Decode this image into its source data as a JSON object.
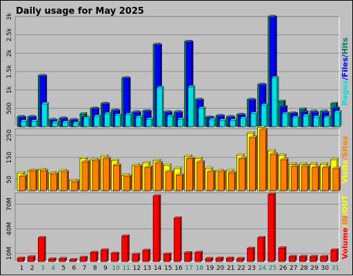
{
  "chart_data": {
    "type": "bar",
    "title": "Daily usage for May 2025",
    "days": [
      "1",
      "2",
      "3",
      "4",
      "5",
      "6",
      "7",
      "8",
      "9",
      "10",
      "11",
      "12",
      "13",
      "14",
      "15",
      "16",
      "17",
      "18",
      "19",
      "20",
      "21",
      "22",
      "23",
      "24",
      "25",
      "26",
      "27",
      "28",
      "29",
      "30",
      "31"
    ],
    "weekend_days": [
      "3",
      "4",
      "10",
      "11",
      "17",
      "18",
      "24",
      "25",
      "31"
    ],
    "colors": {
      "title": "#0000ff",
      "hits": "#00805c",
      "files": "#0000ff",
      "pages": "#00e0e0",
      "visits": "#ffff00",
      "sites": "#ff8000",
      "kbytes": "#ff0000",
      "in": "#ff8000",
      "out": "#ffff00",
      "weekend_label": "#00805c",
      "weekday_label": "#000000"
    },
    "panels": [
      {
        "name": "hits-files-pages",
        "ylim": [
          0,
          3000
        ],
        "y_ticks": [
          {
            "label": "3k",
            "value": 3000
          },
          {
            "label": "2.5k",
            "value": 2500
          },
          {
            "label": "2k",
            "value": 2000
          },
          {
            "label": "1.5k",
            "value": 1500
          },
          {
            "label": "1k",
            "value": 1000
          },
          {
            "label": "500",
            "value": 500
          }
        ],
        "series": [
          {
            "name": "Hits",
            "color_key": "hits",
            "values": [
              270,
              270,
              1390,
              190,
              230,
              190,
              350,
              500,
              630,
              450,
              1330,
              400,
              430,
              2240,
              400,
              400,
              2320,
              740,
              260,
              300,
              270,
              330,
              740,
              1150,
              3000,
              690,
              370,
              480,
              420,
              420,
              630
            ]
          },
          {
            "name": "Files",
            "color_key": "files",
            "values": [
              250,
              250,
              1370,
              170,
              210,
              170,
              250,
              480,
              610,
              430,
              1310,
              380,
              410,
              2220,
              380,
              380,
              2300,
              720,
              240,
              280,
              250,
              310,
              720,
              1130,
              2980,
              540,
              350,
              400,
              380,
              380,
              500
            ]
          },
          {
            "name": "Pages",
            "color_key": "pages",
            "values": [
              150,
              150,
              620,
              110,
              120,
              100,
              230,
              280,
              350,
              310,
              330,
              260,
              200,
              1060,
              280,
              200,
              1080,
              500,
              190,
              170,
              170,
              230,
              360,
              590,
              1330,
              350,
              250,
              300,
              260,
              250,
              400
            ]
          }
        ]
      },
      {
        "name": "visits-sites",
        "ylim": [
          0,
          280
        ],
        "y_ticks": [
          {
            "label": "250",
            "value": 250
          },
          {
            "label": "150",
            "value": 150
          },
          {
            "label": "50",
            "value": 50
          }
        ],
        "series": [
          {
            "name": "Visits",
            "color_key": "visits",
            "values": [
              80,
              90,
              95,
              80,
              90,
              45,
              145,
              140,
              155,
              135,
              70,
              115,
              125,
              135,
              115,
              100,
              155,
              145,
              100,
              90,
              90,
              160,
              260,
              285,
              180,
              160,
              120,
              120,
              120,
              120,
              140
            ]
          },
          {
            "name": "Sites",
            "color_key": "sites",
            "values": [
              65,
              90,
              90,
              75,
              85,
              40,
              130,
              135,
              145,
              115,
              65,
              110,
              105,
              125,
              85,
              70,
              145,
              130,
              85,
              85,
              80,
              145,
              240,
              275,
              165,
              140,
              110,
              110,
              105,
              105,
              100
            ]
          }
        ]
      },
      {
        "name": "volume",
        "ylim": [
          0,
          84000000
        ],
        "y_ticks": [
          {
            "label": "70M",
            "value": 70000000
          },
          {
            "label": "40M",
            "value": 40000000
          },
          {
            "label": "10M",
            "value": 10000000
          }
        ],
        "series": [
          {
            "name": "Volume",
            "color_key": "kbytes",
            "values": [
              4000000,
              5600000,
              29000000,
              3000000,
              3500000,
              2200000,
              5000000,
              11000000,
              14000000,
              10000000,
              31000000,
              8700000,
              13500000,
              80000000,
              9000000,
              53000000,
              10600000,
              11000000,
              3500000,
              4000000,
              4000000,
              3500000,
              16000000,
              29000000,
              82000000,
              16500000,
              6000000,
              6000000,
              6000000,
              6000000,
              14000000
            ]
          }
        ]
      }
    ],
    "legend": {
      "panel1": [
        {
          "text": "Pages",
          "color_key": "pages"
        },
        {
          "text": "/",
          "color_key": "files"
        },
        {
          "text": "Files",
          "color_key": "files"
        },
        {
          "text": "/",
          "color_key": "files"
        },
        {
          "text": "Hits",
          "color_key": "hits"
        }
      ],
      "panel2": [
        {
          "text": "Visits",
          "color_key": "visits"
        },
        {
          "text": "/",
          "color_key": "sites"
        },
        {
          "text": "Sites",
          "color_key": "sites"
        }
      ],
      "panel3": [
        {
          "text": "Volume",
          "color_key": "kbytes"
        },
        {
          "text": "/",
          "color_key": "out"
        },
        {
          "text": "IN",
          "color_key": "in"
        },
        {
          "text": "/",
          "color_key": "out"
        },
        {
          "text": "OUT",
          "color_key": "out"
        }
      ]
    }
  }
}
